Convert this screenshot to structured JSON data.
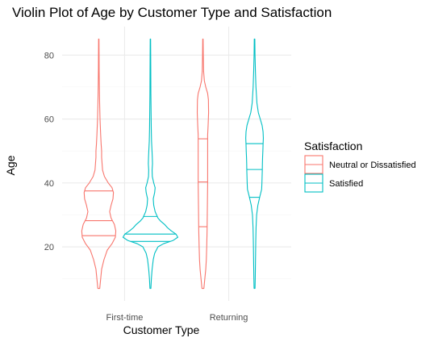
{
  "chart_data": {
    "type": "violin",
    "title": "Violin Plot of Age by Customer Type and Satisfaction",
    "xlabel": "Customer Type",
    "ylabel": "Age",
    "categories": [
      "First-time",
      "Returning"
    ],
    "yticks": [
      20,
      40,
      60,
      80
    ],
    "ylim": [
      3.1,
      88.9
    ],
    "grid": true,
    "legend": {
      "title": "Satisfaction",
      "placement": "right",
      "entries": [
        "Neutral or Dissatisfied",
        "Satisfied"
      ]
    },
    "colors": {
      "Neutral or Dissatisfied": "#F8766D",
      "Satisfied": "#00BFC4"
    },
    "series": [
      {
        "name": "Neutral or Dissatisfied",
        "violins": [
          {
            "category": "First-time",
            "ymin": 7,
            "ymax": 85,
            "quantiles": [
              23.5,
              28.2,
              37.5
            ],
            "profile": [
              [
                7,
                0.01
              ],
              [
                10,
                0.02
              ],
              [
                13,
                0.03
              ],
              [
                16,
                0.055
              ],
              [
                19,
                0.09
              ],
              [
                21,
                0.14
              ],
              [
                23,
                0.175
              ],
              [
                25,
                0.18
              ],
              [
                27,
                0.165
              ],
              [
                29,
                0.13
              ],
              [
                31,
                0.115
              ],
              [
                33,
                0.13
              ],
              [
                35,
                0.15
              ],
              [
                37,
                0.155
              ],
              [
                38.5,
                0.14
              ],
              [
                40,
                0.1
              ],
              [
                42,
                0.06
              ],
              [
                44,
                0.04
              ],
              [
                46,
                0.035
              ],
              [
                48,
                0.03
              ],
              [
                50,
                0.03
              ],
              [
                52,
                0.025
              ],
              [
                55,
                0.02
              ],
              [
                60,
                0.013
              ],
              [
                65,
                0.009
              ],
              [
                70,
                0.006
              ],
              [
                75,
                0.004
              ],
              [
                80,
                0.003
              ],
              [
                85,
                0.002
              ]
            ]
          },
          {
            "category": "Returning",
            "ymin": 7,
            "ymax": 85,
            "quantiles": [
              26.3,
              40.3,
              53.8
            ],
            "profile": [
              [
                7,
                0.01
              ],
              [
                10,
                0.02
              ],
              [
                13,
                0.03
              ],
              [
                16,
                0.036
              ],
              [
                20,
                0.04
              ],
              [
                25,
                0.044
              ],
              [
                30,
                0.046
              ],
              [
                35,
                0.048
              ],
              [
                40,
                0.05
              ],
              [
                45,
                0.05
              ],
              [
                50,
                0.05
              ],
              [
                55,
                0.05
              ],
              [
                58,
                0.055
              ],
              [
                62,
                0.06
              ],
              [
                66,
                0.058
              ],
              [
                68,
                0.05
              ],
              [
                70,
                0.03
              ],
              [
                72,
                0.015
              ],
              [
                75,
                0.007
              ],
              [
                80,
                0.004
              ],
              [
                85,
                0.002
              ]
            ]
          }
        ]
      },
      {
        "name": "Satisfied",
        "violins": [
          {
            "category": "First-time",
            "ymin": 7,
            "ymax": 85,
            "quantiles": [
              21.7,
              24.0,
              29.5
            ],
            "profile": [
              [
                7,
                0.005
              ],
              [
                10,
                0.01
              ],
              [
                13,
                0.018
              ],
              [
                16,
                0.03
              ],
              [
                18,
                0.045
              ],
              [
                20,
                0.08
              ],
              [
                21,
                0.14
              ],
              [
                22,
                0.24
              ],
              [
                23,
                0.29
              ],
              [
                24,
                0.27
              ],
              [
                25,
                0.22
              ],
              [
                26,
                0.18
              ],
              [
                27,
                0.15
              ],
              [
                28,
                0.11
              ],
              [
                29,
                0.08
              ],
              [
                31,
                0.05
              ],
              [
                33,
                0.035
              ],
              [
                35,
                0.03
              ],
              [
                37,
                0.045
              ],
              [
                38.5,
                0.05
              ],
              [
                40,
                0.035
              ],
              [
                42,
                0.02
              ],
              [
                44,
                0.018
              ],
              [
                46,
                0.022
              ],
              [
                48,
                0.02
              ],
              [
                50,
                0.017
              ],
              [
                53,
                0.012
              ],
              [
                57,
                0.009
              ],
              [
                62,
                0.007
              ],
              [
                68,
                0.005
              ],
              [
                75,
                0.004
              ],
              [
                80,
                0.003
              ],
              [
                85,
                0.002
              ]
            ]
          },
          {
            "category": "Returning",
            "ymin": 7,
            "ymax": 85,
            "quantiles": [
              35.5,
              44.2,
              52.3
            ],
            "profile": [
              [
                7,
                0.005
              ],
              [
                10,
                0.007
              ],
              [
                14,
                0.009
              ],
              [
                18,
                0.011
              ],
              [
                22,
                0.013
              ],
              [
                26,
                0.016
              ],
              [
                30,
                0.022
              ],
              [
                33,
                0.035
              ],
              [
                36,
                0.058
              ],
              [
                38,
                0.075
              ],
              [
                40,
                0.078
              ],
              [
                42,
                0.08
              ],
              [
                44,
                0.082
              ],
              [
                46,
                0.083
              ],
              [
                48,
                0.085
              ],
              [
                50,
                0.088
              ],
              [
                52,
                0.09
              ],
              [
                54,
                0.093
              ],
              [
                56,
                0.09
              ],
              [
                58,
                0.08
              ],
              [
                60,
                0.06
              ],
              [
                62,
                0.04
              ],
              [
                65,
                0.025
              ],
              [
                70,
                0.015
              ],
              [
                75,
                0.009
              ],
              [
                80,
                0.005
              ],
              [
                85,
                0.003
              ]
            ]
          }
        ]
      }
    ]
  }
}
